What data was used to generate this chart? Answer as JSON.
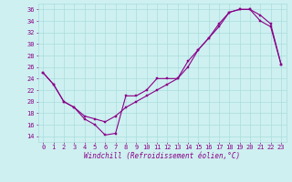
{
  "xlabel": "Windchill (Refroidissement éolien,°C)",
  "bg_color": "#cef0f0",
  "line_color": "#880088",
  "xlim": [
    -0.5,
    23.5
  ],
  "ylim": [
    13,
    37
  ],
  "xticks": [
    0,
    1,
    2,
    3,
    4,
    5,
    6,
    7,
    8,
    9,
    10,
    11,
    12,
    13,
    14,
    15,
    16,
    17,
    18,
    19,
    20,
    21,
    22,
    23
  ],
  "yticks": [
    14,
    16,
    18,
    20,
    22,
    24,
    26,
    28,
    30,
    32,
    34,
    36
  ],
  "grid_color": "#aadddd",
  "line1_x": [
    0,
    1,
    2,
    3,
    4,
    5,
    6,
    7,
    8,
    9,
    10,
    11,
    12,
    13,
    14,
    15,
    16,
    17,
    18,
    19,
    20,
    21,
    22,
    23
  ],
  "line1_y": [
    25,
    23,
    20,
    19,
    17,
    16,
    14.2,
    14.5,
    21,
    21,
    22,
    24,
    24,
    24,
    27,
    29,
    31,
    33,
    35.5,
    36,
    36,
    34,
    33,
    26.5
  ],
  "line2_x": [
    0,
    1,
    2,
    3,
    4,
    5,
    6,
    7,
    8,
    9,
    10,
    11,
    12,
    13,
    14,
    15,
    16,
    17,
    18,
    19,
    20,
    21,
    22,
    23
  ],
  "line2_y": [
    25,
    23,
    20,
    19,
    17.5,
    17,
    16.5,
    17.5,
    19,
    20,
    21,
    22,
    23,
    24,
    26,
    29,
    31,
    33.5,
    35.5,
    36,
    36,
    35,
    33.5,
    26.5
  ]
}
